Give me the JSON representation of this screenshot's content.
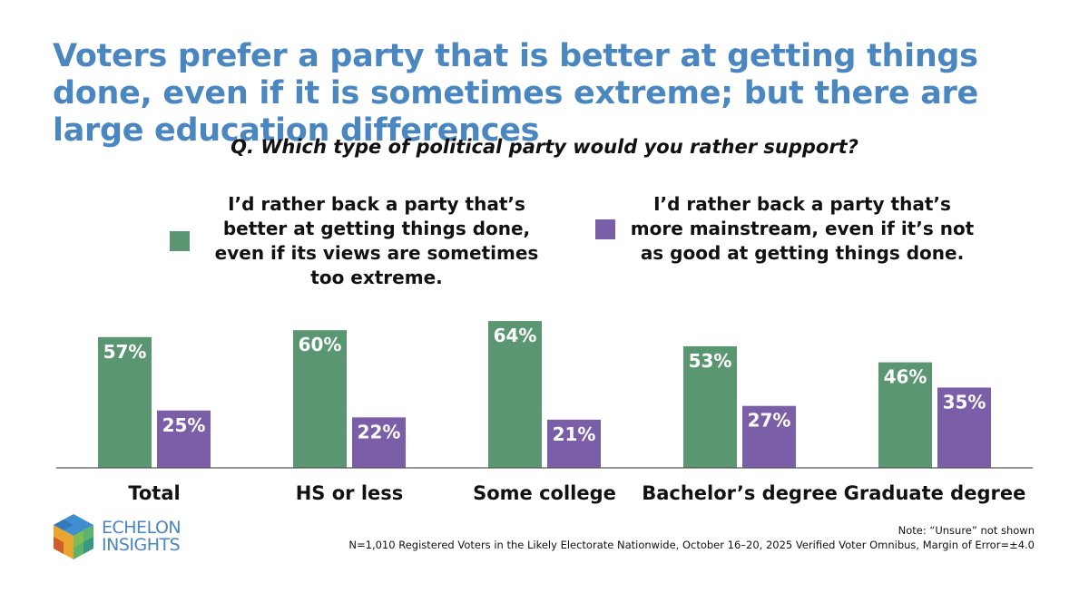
{
  "title": "Voters prefer a party that is better at getting things done, even if it is sometimes extreme; but there are large education differences",
  "question": "Q. Which type of political party would you rather support?",
  "colors": {
    "title": "#4a86c0",
    "series_green": "#5b9672",
    "series_purple": "#7b5ea8",
    "axis": "#555555"
  },
  "chart_data": {
    "type": "bar",
    "categories": [
      "Total",
      "HS or less",
      "Some college",
      "Bachelor’s degree",
      "Graduate degree"
    ],
    "series": [
      {
        "name": "I’d rather back a party that’s better at getting things done, even if its views are sometimes too extreme.",
        "values": [
          57,
          60,
          64,
          53,
          46
        ],
        "labels": [
          "57%",
          "60%",
          "64%",
          "53%",
          "46%"
        ],
        "color": "#5b9672"
      },
      {
        "name": "I’d rather back a party that’s more mainstream, even if it’s not as good at getting things done.",
        "values": [
          25,
          22,
          21,
          27,
          35
        ],
        "labels": [
          "25%",
          "22%",
          "21%",
          "27%",
          "35%"
        ],
        "color": "#7b5ea8"
      }
    ],
    "unit": "%",
    "legend_position": "top",
    "grid": false
  },
  "logo": {
    "line1": "ECHELON",
    "line2": "INSIGHTS",
    "icon": "cube-logo-icon"
  },
  "note": "Note: “Unsure” not shown",
  "source": "N=1,010 Registered Voters in the Likely Electorate Nationwide, October 16–20, 2025 Verified Voter Omnibus, Margin of Error=±4.0"
}
